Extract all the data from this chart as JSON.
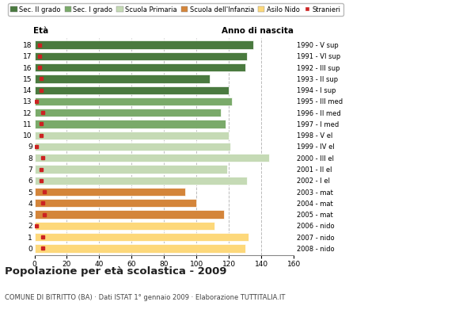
{
  "ages": [
    18,
    17,
    16,
    15,
    14,
    13,
    12,
    11,
    10,
    9,
    8,
    7,
    6,
    5,
    4,
    3,
    2,
    1,
    0
  ],
  "years": [
    "1990 - V sup",
    "1991 - VI sup",
    "1992 - III sup",
    "1993 - II sup",
    "1994 - I sup",
    "1995 - III med",
    "1996 - II med",
    "1997 - I med",
    "1998 - V el",
    "1999 - IV el",
    "2000 - III el",
    "2001 - II el",
    "2002 - I el",
    "2003 - mat",
    "2004 - mat",
    "2005 - mat",
    "2006 - nido",
    "2007 - nido",
    "2008 - nido"
  ],
  "values": [
    135,
    131,
    130,
    108,
    120,
    122,
    115,
    118,
    120,
    121,
    145,
    119,
    131,
    93,
    100,
    117,
    111,
    132,
    130
  ],
  "stranieri": [
    3,
    3,
    3,
    4,
    4,
    1,
    5,
    4,
    4,
    1,
    5,
    4,
    4,
    6,
    5,
    6,
    1,
    5,
    5
  ],
  "categories": [
    "sec_II",
    "sec_II",
    "sec_II",
    "sec_II",
    "sec_II",
    "sec_I",
    "sec_I",
    "sec_I",
    "primaria",
    "primaria",
    "primaria",
    "primaria",
    "primaria",
    "infanzia",
    "infanzia",
    "infanzia",
    "nido",
    "nido",
    "nido"
  ],
  "colors": {
    "sec_II": "#4a7a3f",
    "sec_I": "#7aaa6a",
    "primaria": "#c5dab5",
    "infanzia": "#d4853a",
    "nido": "#fdd87a"
  },
  "legend_labels": [
    "Sec. II grado",
    "Sec. I grado",
    "Scuola Primaria",
    "Scuola dell'Infanzia",
    "Asilo Nido",
    "Stranieri"
  ],
  "legend_colors": [
    "#4a7a3f",
    "#7aaa6a",
    "#c5dab5",
    "#d4853a",
    "#fdd87a",
    "#cc2222"
  ],
  "stranieri_color": "#cc2222",
  "title": "Popolazione per età scolastica - 2009",
  "subtitle": "COMUNE DI BITRITTO (BA) · Dati ISTAT 1° gennaio 2009 · Elaborazione TUTTITALIA.IT",
  "xlabel_age": "Età",
  "xlabel_year": "Anno di nascita",
  "xlim": [
    0,
    160
  ],
  "xticks": [
    0,
    20,
    40,
    60,
    80,
    100,
    120,
    140,
    160
  ],
  "bar_height": 0.72,
  "bg_color": "#ffffff",
  "grid_color": "#bbbbbb"
}
